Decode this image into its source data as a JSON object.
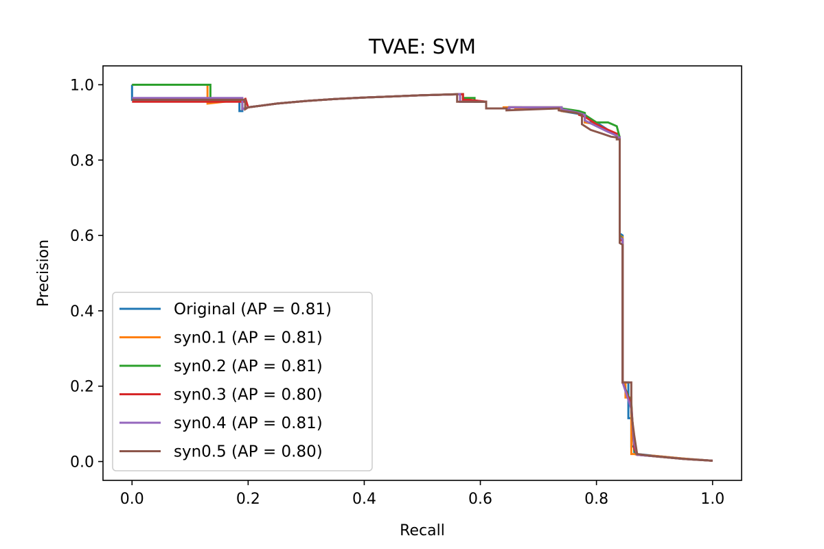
{
  "chart_data": {
    "type": "line",
    "title": "TVAE: SVM",
    "xlabel": "Recall",
    "ylabel": "Precision",
    "xlim": [
      -0.05,
      1.05
    ],
    "ylim": [
      -0.05,
      1.05
    ],
    "xticks": [
      "0.0",
      "0.2",
      "0.4",
      "0.6",
      "0.8",
      "1.0"
    ],
    "yticks": [
      "0.0",
      "0.2",
      "0.4",
      "0.6",
      "0.8",
      "1.0"
    ],
    "xtick_values": [
      0.0,
      0.2,
      0.4,
      0.6,
      0.8,
      1.0
    ],
    "ytick_values": [
      0.0,
      0.2,
      0.4,
      0.6,
      0.8,
      1.0
    ],
    "grid": false,
    "legend_position": "lower-left",
    "series": [
      {
        "name": "Original (AP = 0.81)",
        "color": "#1f77b4",
        "x": [
          0.0,
          0.0,
          0.185,
          0.185,
          0.19,
          0.19,
          0.2,
          0.25,
          0.3,
          0.35,
          0.4,
          0.45,
          0.5,
          0.565,
          0.565,
          0.58,
          0.61,
          0.61,
          0.65,
          0.65,
          0.67,
          0.67,
          0.74,
          0.74,
          0.76,
          0.78,
          0.78,
          0.8,
          0.82,
          0.835,
          0.835,
          0.84,
          0.84,
          0.845,
          0.845,
          0.855,
          0.855,
          0.86,
          0.86,
          0.865,
          0.865,
          0.87,
          0.9,
          0.95,
          1.0
        ],
        "y": [
          1.0,
          0.96,
          0.96,
          0.93,
          0.93,
          0.935,
          0.94,
          0.95,
          0.957,
          0.962,
          0.966,
          0.969,
          0.972,
          0.975,
          0.955,
          0.955,
          0.955,
          0.937,
          0.937,
          0.94,
          0.94,
          0.937,
          0.937,
          0.93,
          0.925,
          0.92,
          0.9,
          0.9,
          0.88,
          0.87,
          0.86,
          0.86,
          0.605,
          0.6,
          0.21,
          0.21,
          0.115,
          0.115,
          0.04,
          0.04,
          0.025,
          0.02,
          0.015,
          0.008,
          0.002
        ]
      },
      {
        "name": "syn0.1 (AP = 0.81)",
        "color": "#ff7f0e",
        "x": [
          0.0,
          0.0,
          0.13,
          0.13,
          0.19,
          0.19,
          0.2,
          0.25,
          0.3,
          0.35,
          0.4,
          0.45,
          0.5,
          0.57,
          0.57,
          0.58,
          0.61,
          0.61,
          0.64,
          0.64,
          0.66,
          0.66,
          0.74,
          0.74,
          0.77,
          0.78,
          0.78,
          0.8,
          0.82,
          0.835,
          0.835,
          0.84,
          0.84,
          0.845,
          0.845,
          0.85,
          0.85,
          0.86,
          0.86,
          0.865,
          0.865,
          0.87,
          0.9,
          0.95,
          1.0
        ],
        "y": [
          1.0,
          1.0,
          1.0,
          0.95,
          0.96,
          0.935,
          0.94,
          0.95,
          0.957,
          0.962,
          0.966,
          0.969,
          0.972,
          0.975,
          0.96,
          0.96,
          0.955,
          0.937,
          0.937,
          0.94,
          0.94,
          0.937,
          0.937,
          0.93,
          0.925,
          0.92,
          0.9,
          0.895,
          0.88,
          0.87,
          0.86,
          0.86,
          0.6,
          0.595,
          0.21,
          0.21,
          0.17,
          0.17,
          0.02,
          0.02,
          0.02,
          0.018,
          0.015,
          0.008,
          0.002
        ]
      },
      {
        "name": "syn0.2 (AP = 0.81)",
        "color": "#2ca02c",
        "x": [
          0.0,
          0.0,
          0.135,
          0.135,
          0.19,
          0.19,
          0.2,
          0.25,
          0.3,
          0.35,
          0.4,
          0.45,
          0.5,
          0.57,
          0.57,
          0.59,
          0.59,
          0.61,
          0.61,
          0.65,
          0.65,
          0.74,
          0.74,
          0.77,
          0.78,
          0.78,
          0.8,
          0.82,
          0.835,
          0.835,
          0.84,
          0.84,
          0.845,
          0.845,
          0.86,
          0.86,
          0.865,
          0.865,
          0.87,
          0.9,
          0.95,
          1.0
        ],
        "y": [
          1.0,
          1.0,
          1.0,
          0.955,
          0.96,
          0.935,
          0.94,
          0.95,
          0.957,
          0.962,
          0.966,
          0.969,
          0.972,
          0.975,
          0.965,
          0.965,
          0.955,
          0.955,
          0.937,
          0.937,
          0.94,
          0.94,
          0.937,
          0.93,
          0.925,
          0.92,
          0.9,
          0.9,
          0.89,
          0.89,
          0.86,
          0.6,
          0.59,
          0.21,
          0.155,
          0.155,
          0.03,
          0.03,
          0.018,
          0.014,
          0.007,
          0.002
        ]
      },
      {
        "name": "syn0.3 (AP = 0.80)",
        "color": "#d62728",
        "x": [
          0.0,
          0.0,
          0.195,
          0.195,
          0.2,
          0.25,
          0.3,
          0.35,
          0.4,
          0.45,
          0.5,
          0.57,
          0.57,
          0.58,
          0.61,
          0.61,
          0.65,
          0.65,
          0.74,
          0.74,
          0.77,
          0.77,
          0.78,
          0.8,
          0.82,
          0.835,
          0.835,
          0.84,
          0.84,
          0.845,
          0.845,
          0.86,
          0.86,
          0.865,
          0.865,
          0.87,
          0.9,
          0.95,
          1.0
        ],
        "y": [
          0.955,
          0.955,
          0.955,
          0.965,
          0.94,
          0.95,
          0.957,
          0.962,
          0.966,
          0.969,
          0.972,
          0.975,
          0.96,
          0.96,
          0.955,
          0.937,
          0.937,
          0.94,
          0.94,
          0.935,
          0.925,
          0.92,
          0.915,
          0.895,
          0.88,
          0.87,
          0.86,
          0.86,
          0.59,
          0.585,
          0.21,
          0.15,
          0.15,
          0.035,
          0.035,
          0.018,
          0.014,
          0.007,
          0.002
        ]
      },
      {
        "name": "syn0.4 (AP = 0.81)",
        "color": "#9467bd",
        "x": [
          0.0,
          0.0,
          0.19,
          0.19,
          0.2,
          0.25,
          0.3,
          0.35,
          0.4,
          0.45,
          0.5,
          0.565,
          0.565,
          0.58,
          0.61,
          0.61,
          0.65,
          0.65,
          0.74,
          0.74,
          0.77,
          0.78,
          0.78,
          0.8,
          0.82,
          0.835,
          0.835,
          0.84,
          0.84,
          0.845,
          0.845,
          0.86,
          0.86,
          0.865,
          0.865,
          0.87,
          0.9,
          0.95,
          1.0
        ],
        "y": [
          0.965,
          0.965,
          0.965,
          0.935,
          0.94,
          0.95,
          0.957,
          0.962,
          0.966,
          0.969,
          0.972,
          0.975,
          0.955,
          0.955,
          0.955,
          0.937,
          0.937,
          0.94,
          0.94,
          0.935,
          0.925,
          0.92,
          0.905,
          0.89,
          0.875,
          0.865,
          0.86,
          0.86,
          0.595,
          0.59,
          0.21,
          0.14,
          0.14,
          0.05,
          0.05,
          0.018,
          0.014,
          0.007,
          0.002
        ]
      },
      {
        "name": "syn0.5 (AP = 0.80)",
        "color": "#8c564b",
        "x": [
          0.0,
          0.0,
          0.195,
          0.195,
          0.2,
          0.25,
          0.3,
          0.35,
          0.4,
          0.45,
          0.5,
          0.56,
          0.56,
          0.575,
          0.575,
          0.61,
          0.61,
          0.645,
          0.645,
          0.735,
          0.735,
          0.765,
          0.775,
          0.775,
          0.79,
          0.81,
          0.825,
          0.835,
          0.835,
          0.84,
          0.84,
          0.845,
          0.845,
          0.86,
          0.86,
          0.865,
          0.865,
          0.87,
          0.9,
          0.95,
          1.0
        ],
        "y": [
          0.96,
          0.96,
          0.96,
          0.935,
          0.94,
          0.95,
          0.957,
          0.962,
          0.966,
          0.969,
          0.972,
          0.975,
          0.955,
          0.955,
          0.955,
          0.955,
          0.937,
          0.937,
          0.932,
          0.937,
          0.932,
          0.925,
          0.92,
          0.895,
          0.88,
          0.87,
          0.862,
          0.86,
          0.855,
          0.855,
          0.58,
          0.575,
          0.21,
          0.21,
          0.13,
          0.07,
          0.07,
          0.02,
          0.014,
          0.007,
          0.002
        ]
      }
    ]
  }
}
